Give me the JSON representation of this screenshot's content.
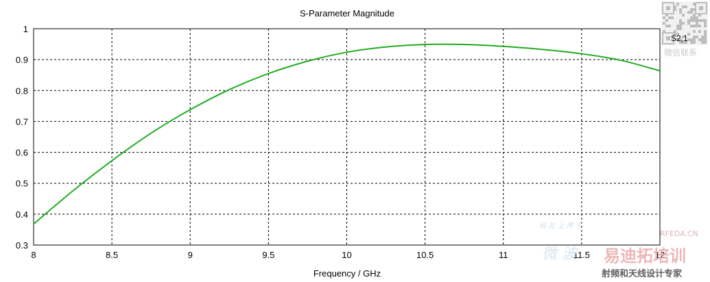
{
  "chart_data": {
    "type": "line",
    "title": "S-Parameter Magnitude",
    "xlabel": "Frequency / GHz",
    "ylabel": "",
    "xlim": [
      8,
      12
    ],
    "ylim": [
      0.3,
      1
    ],
    "xticks": [
      8,
      8.5,
      9,
      9.5,
      10,
      10.5,
      11,
      11.5,
      12
    ],
    "yticks": [
      0.3,
      0.4,
      0.5,
      0.6,
      0.7,
      0.8,
      0.9,
      1
    ],
    "xtick_labels": [
      "8",
      "8.5",
      "9",
      "9.5",
      "10",
      "10.5",
      "11",
      "11.5",
      "12"
    ],
    "ytick_labels": [
      "0.3",
      "0.4",
      "0.5",
      "0.6",
      "0.7",
      "0.8",
      "0.9",
      "1"
    ],
    "grid": true,
    "legend_position": "right",
    "series": [
      {
        "name": "S2,1",
        "color": "#22aa22",
        "x": [
          8,
          8.25,
          8.5,
          8.75,
          9,
          9.25,
          9.5,
          9.75,
          10,
          10.25,
          10.5,
          10.75,
          11,
          11.25,
          11.5,
          11.75,
          12
        ],
        "y": [
          0.368,
          0.475,
          0.573,
          0.662,
          0.738,
          0.803,
          0.855,
          0.895,
          0.924,
          0.941,
          0.949,
          0.949,
          0.943,
          0.933,
          0.919,
          0.898,
          0.864
        ]
      }
    ]
  },
  "watermarks": {
    "qr_caption": "微信联系",
    "site": "RFEDA.CN",
    "brand": "易迪拓培训",
    "slogan": "射频和天线设计专家",
    "faint_left": "微 波",
    "faint_small": "网 友 上 传 于"
  }
}
